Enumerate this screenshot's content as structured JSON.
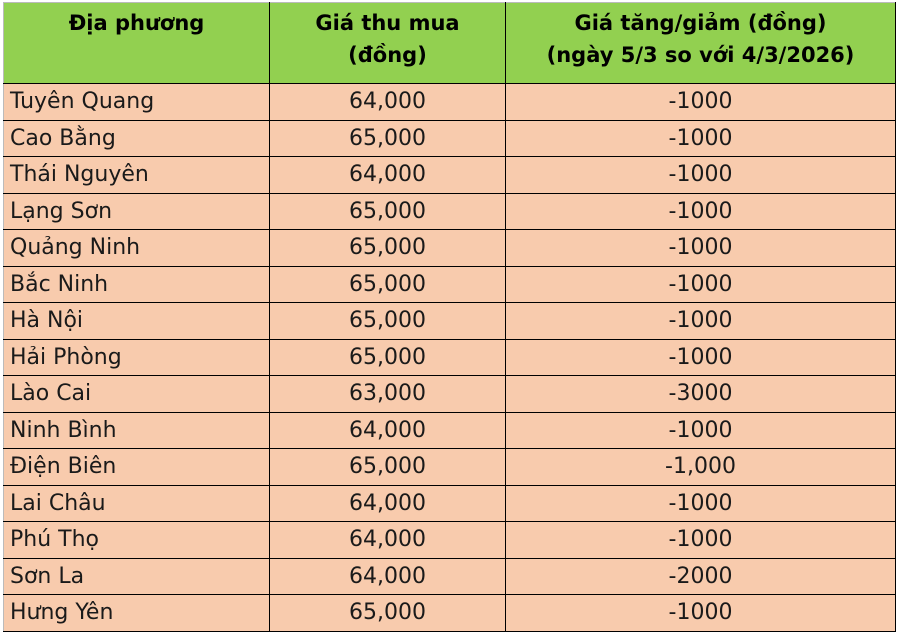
{
  "headers": [
    "Địa phương",
    "Giá thu mua\n(đồng)",
    "Giá tăng/giảm (đồng)\n(ngày 5/3 so với 4/3/2026)"
  ],
  "header_lines": {
    "col1": "Địa phương",
    "col2_line1": "Giá thu mua",
    "col2_line2": "(đồng)",
    "col3_line1": "Giá tăng/giảm (đồng)",
    "col3_line2": "(ngày 5/3 so với 4/3/2026)"
  },
  "rows": [
    {
      "place": "Tuyên Quang",
      "price": "64,000",
      "change": "-1000"
    },
    {
      "place": "Cao Bằng",
      "price": "65,000",
      "change": "-1000"
    },
    {
      "place": "Thái Nguyên",
      "price": "64,000",
      "change": "-1000"
    },
    {
      "place": "Lạng Sơn",
      "price": "65,000",
      "change": "-1000"
    },
    {
      "place": "Quảng Ninh",
      "price": "65,000",
      "change": "-1000"
    },
    {
      "place": "Bắc Ninh",
      "price": "65,000",
      "change": "-1000"
    },
    {
      "place": "Hà Nội",
      "price": "65,000",
      "change": "-1000"
    },
    {
      "place": "Hải Phòng",
      "price": "65,000",
      "change": "-1000"
    },
    {
      "place": "Lào Cai",
      "price": "63,000",
      "change": "-3000"
    },
    {
      "place": "Ninh Bình",
      "price": "64,000",
      "change": "-1000"
    },
    {
      "place": "Điện Biên",
      "price": "65,000",
      "change": "-1,000"
    },
    {
      "place": "Lai Châu",
      "price": "64,000",
      "change": "-1000"
    },
    {
      "place": "Phú Thọ",
      "price": "64,000",
      "change": "-1000"
    },
    {
      "place": "Sơn La",
      "price": "64,000",
      "change": "-2000"
    },
    {
      "place": "Hưng Yên",
      "price": "65,000",
      "change": "-1000"
    }
  ],
  "colors": {
    "header_bg": "#92d050",
    "row_bg": "#f8cbad"
  }
}
